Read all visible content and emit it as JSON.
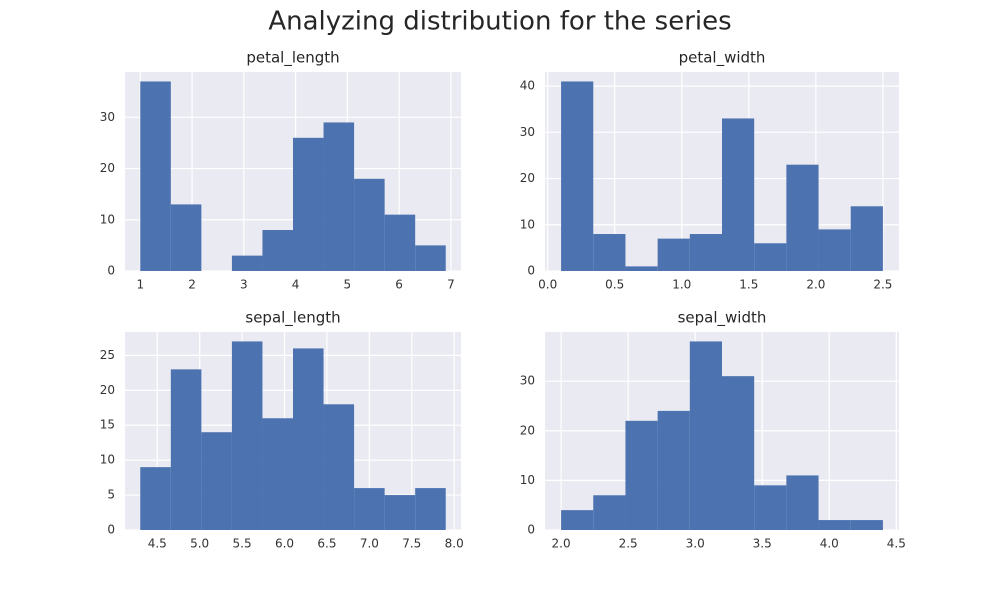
{
  "title": "Analyzing distribution for the series",
  "chart_data": [
    {
      "type": "histogram",
      "title": "petal_length",
      "bins": [
        1.0,
        1.59,
        2.18,
        2.77,
        3.36,
        3.95,
        4.54,
        5.13,
        5.72,
        6.31,
        6.9
      ],
      "values": [
        37,
        13,
        0,
        3,
        8,
        26,
        29,
        18,
        11,
        5
      ],
      "color": "#4c72b0",
      "grid": true,
      "xlim": [
        0.705,
        7.195
      ],
      "ylim": [
        0,
        38.85
      ],
      "xticks": [
        1,
        2,
        3,
        4,
        5,
        6,
        7
      ],
      "yticks": [
        0,
        10,
        20,
        30
      ]
    },
    {
      "type": "histogram",
      "title": "petal_width",
      "bins": [
        0.1,
        0.34,
        0.58,
        0.82,
        1.06,
        1.3,
        1.54,
        1.78,
        2.02,
        2.26,
        2.5
      ],
      "values": [
        41,
        8,
        1,
        7,
        8,
        33,
        6,
        23,
        9,
        14
      ],
      "color": "#4c72b0",
      "grid": true,
      "xlim": [
        -0.02,
        2.62
      ],
      "ylim": [
        0,
        43.05
      ],
      "xticks": [
        {
          "value": 0,
          "label": "0.0"
        },
        0.5,
        {
          "value": 1,
          "label": "1.0"
        },
        1.5,
        {
          "value": 2,
          "label": "2.0"
        },
        2.5
      ],
      "yticks": [
        0,
        10,
        20,
        30,
        40
      ]
    },
    {
      "type": "histogram",
      "title": "sepal_length",
      "bins": [
        4.3,
        4.66,
        5.02,
        5.38,
        5.74,
        6.1,
        6.46,
        6.82,
        7.18,
        7.54,
        7.9
      ],
      "values": [
        9,
        23,
        14,
        27,
        16,
        26,
        18,
        6,
        5,
        6
      ],
      "color": "#4c72b0",
      "grid": true,
      "xlim": [
        4.12,
        8.08
      ],
      "ylim": [
        0,
        28.35
      ],
      "xticks": [
        4.5,
        {
          "value": 5,
          "label": "5.0"
        },
        5.5,
        {
          "value": 6,
          "label": "6.0"
        },
        6.5,
        {
          "value": 7,
          "label": "7.0"
        },
        7.5,
        {
          "value": 8,
          "label": "8.0"
        }
      ],
      "yticks": [
        0,
        5,
        10,
        15,
        20,
        25
      ]
    },
    {
      "type": "histogram",
      "title": "sepal_width",
      "bins": [
        2.0,
        2.24,
        2.48,
        2.72,
        2.96,
        3.2,
        3.44,
        3.68,
        3.92,
        4.16,
        4.4
      ],
      "values": [
        4,
        7,
        22,
        24,
        38,
        31,
        9,
        11,
        2,
        2
      ],
      "color": "#4c72b0",
      "grid": true,
      "xlim": [
        1.88,
        4.52
      ],
      "ylim": [
        0,
        39.9
      ],
      "xticks": [
        {
          "value": 2,
          "label": "2.0"
        },
        2.5,
        {
          "value": 3,
          "label": "3.0"
        },
        3.5,
        {
          "value": 4,
          "label": "4.0"
        },
        4.5
      ],
      "yticks": [
        0,
        10,
        20,
        30
      ]
    }
  ]
}
